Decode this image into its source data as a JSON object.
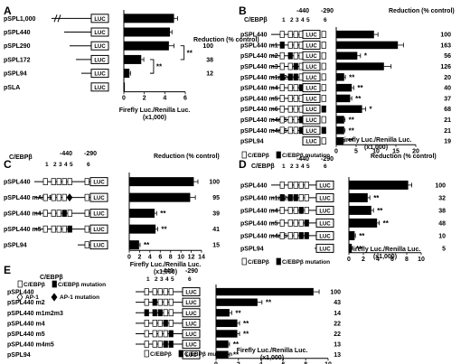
{
  "figure": {
    "panels": [
      {
        "letter": "A",
        "header_labels": [],
        "element_numbers": [],
        "site_labels": [],
        "xlabel": [
          "Firefly Luc./Renilla Luc.",
          "(x1,000)"
        ],
        "reduction_title": "Reduction (% control)",
        "chart_data": {
          "type": "bar",
          "categories": [
            "pSPL1,000",
            "pSPL440",
            "pSPL290",
            "pSPL172",
            "pSPL94",
            "pSLA"
          ],
          "values": [
            4.9,
            4.5,
            4.4,
            1.7,
            0.55,
            0.1
          ],
          "errors": [
            0.35,
            0.2,
            0.5,
            0.25,
            0.1,
            0.0
          ],
          "reduction": [
            "",
            "",
            "100",
            "38",
            "12",
            ""
          ],
          "ticks": [
            "0",
            "2",
            "4",
            "6"
          ],
          "xlim": [
            0,
            6
          ]
        },
        "significance": [
          {
            "label": "**"
          },
          {
            "label": "**"
          }
        ],
        "legend": []
      },
      {
        "letter": "B",
        "header_labels": [
          "C/EBPβ"
        ],
        "element_numbers": [
          "1",
          "2",
          "3",
          "4",
          "5",
          "6"
        ],
        "site_labels": [
          "-440",
          "-290"
        ],
        "xlabel": [
          "Firefly Luc./Renilla Luc.",
          "(x1,000)"
        ],
        "reduction_title": "Reduction (% control)",
        "chart_data": {
          "type": "bar",
          "categories": [
            "pSPL440",
            "pSPL440 m1",
            "pSPL440 m2",
            "pSPL440 m3",
            "pSPL440 m1m2m3",
            "pSPL440 m4",
            "pSPL440 m5",
            "pSPL440 m6",
            "pSPL440 m4m5",
            "pSPL440 m4m6",
            "pSPL94"
          ],
          "values": [
            9.5,
            15.5,
            5.3,
            12.0,
            2.0,
            3.9,
            3.5,
            6.5,
            2.0,
            2.0,
            1.8
          ],
          "errors": [
            1.0,
            1.4,
            0.8,
            1.8,
            0.3,
            0.5,
            0.4,
            0.9,
            0.2,
            0.2,
            0.2
          ],
          "significance": [
            "",
            "",
            "*",
            "",
            "**",
            "**",
            "**",
            "*",
            "**",
            "**",
            "**"
          ],
          "reduction": [
            "100",
            "163",
            "56",
            "126",
            "20",
            "40",
            "37",
            "68",
            "21",
            "21",
            "19"
          ],
          "ticks": [
            "0",
            "5",
            "10",
            "15",
            "20"
          ],
          "xlim": [
            0,
            20
          ]
        },
        "legend": [
          "C/EBPβ",
          "C/EBPβ mutation"
        ]
      },
      {
        "letter": "C",
        "header_labels": [
          "C/EBPβ"
        ],
        "element_numbers": [
          "1",
          "2",
          "3",
          "4",
          "5",
          "6"
        ],
        "site_labels": [
          "-440",
          "-290"
        ],
        "xlabel": [
          "Firefly Luc./Renilla Luc.",
          "(x1,000)"
        ],
        "reduction_title": "Reduction (% control)",
        "chart_data": {
          "type": "bar",
          "categories": [
            "pSPL440",
            "pSPL440 mAP-1",
            "pSPL440 m4",
            "pSPL440 m5",
            "pSPL94"
          ],
          "values": [
            12.5,
            11.8,
            4.9,
            5.1,
            1.9
          ],
          "errors": [
            0.8,
            1.0,
            0.4,
            0.4,
            0.2
          ],
          "significance": [
            "",
            "",
            "**",
            "**",
            "**"
          ],
          "reduction": [
            "100",
            "95",
            "39",
            "41",
            "15"
          ],
          "ticks": [
            "0",
            "2",
            "4",
            "6",
            "8",
            "10",
            "12",
            "14"
          ],
          "xlim": [
            0,
            14
          ]
        },
        "legend": [
          "C/EBPβ",
          "C/EBPβ mutation",
          "AP-1",
          "AP-1 mutation"
        ]
      },
      {
        "letter": "D",
        "header_labels": [
          "C/EBPβ"
        ],
        "element_numbers": [
          "1",
          "2",
          "3",
          "4",
          "5",
          "6"
        ],
        "site_labels": [
          "-440",
          "-290"
        ],
        "xlabel": [
          "Firefly Luc./Renilla Luc.",
          "(x1,000)"
        ],
        "reduction_title": "Reduction (% control)",
        "chart_data": {
          "type": "bar",
          "categories": [
            "pSPL440",
            "pSPL440 m1m2m3",
            "pSPL440 m4",
            "pSPL440 m5",
            "pSPL440 m4m5",
            "pSPL94"
          ],
          "values": [
            8.2,
            2.6,
            3.1,
            3.9,
            0.8,
            0.4
          ],
          "errors": [
            0.5,
            0.3,
            0.3,
            0.3,
            0.1,
            0.1
          ],
          "significance": [
            "",
            "**",
            "**",
            "**",
            "**",
            "**"
          ],
          "reduction": [
            "100",
            "32",
            "38",
            "48",
            "10",
            "5"
          ],
          "ticks": [
            "0",
            "2",
            "4",
            "6",
            "8",
            "10"
          ],
          "xlim": [
            0,
            10
          ]
        },
        "legend": [
          "C/EBPβ",
          "C/EBPβ mutation"
        ]
      },
      {
        "letter": "E",
        "header_labels": [
          "C/EBPβ"
        ],
        "element_numbers": [
          "1",
          "2",
          "3",
          "4",
          "5",
          "6"
        ],
        "site_labels": [
          "-440",
          "-290"
        ],
        "xlabel": [
          "Firefly Luc./Renilla Luc.",
          "(x1,000)"
        ],
        "reduction_title": "",
        "chart_data": {
          "type": "bar",
          "categories": [
            "pSPL440",
            "pSPL440 m2",
            "pSPL440 m1m2m3",
            "pSPL440 m4",
            "pSPL440 m5",
            "pSPL440 m4m5",
            "pSPL94"
          ],
          "values": [
            8.7,
            3.7,
            1.2,
            1.9,
            1.9,
            1.1,
            1.1
          ],
          "errors": [
            0.5,
            0.4,
            0.2,
            0.2,
            0.2,
            0.1,
            0.1
          ],
          "significance": [
            "",
            "**",
            "**",
            "**",
            "**",
            "**",
            "**"
          ],
          "reduction": [
            "100",
            "43",
            "14",
            "22",
            "22",
            "13",
            "13"
          ],
          "ticks": [
            "0",
            "2",
            "4",
            "6",
            "8",
            "10"
          ],
          "xlim": [
            0,
            10
          ]
        },
        "legend": [
          "C/EBPβ",
          "C/EBPβ mutation"
        ]
      }
    ]
  }
}
